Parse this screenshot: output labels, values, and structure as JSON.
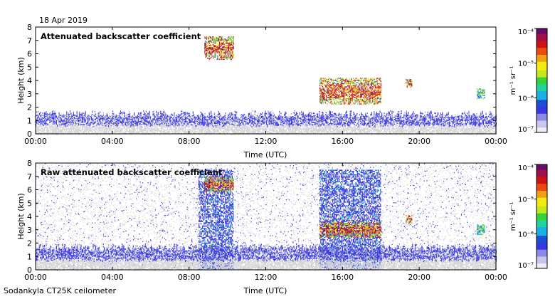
{
  "date_label": "18 Apr 2019",
  "instrument_label": "Sodankyla CT25K ceilometer",
  "colors": {
    "background_signal": "#d4d4d4",
    "low_signal": "#2b2bd9",
    "colormap": [
      "#ecebf8",
      "#c6c6ee",
      "#8a8ae6",
      "#3838e0",
      "#1d4fd6",
      "#1ab0e6",
      "#22d39b",
      "#37d23a",
      "#c5e81c",
      "#f2ea12",
      "#f29e12",
      "#ea4b10",
      "#cc1414",
      "#a0104a",
      "#6a0a6a"
    ]
  },
  "chart_data": [
    {
      "type": "heatmap",
      "title": "Attenuated backscatter coefficient",
      "xlabel": "Time (UTC)",
      "ylabel": "Height (km)",
      "x_ticks": [
        "00:00",
        "04:00",
        "08:00",
        "12:00",
        "16:00",
        "20:00",
        "00:00"
      ],
      "y_ticks": [
        "0",
        "1",
        "2",
        "3",
        "4",
        "5",
        "6",
        "7",
        "8"
      ],
      "xlim_hours": [
        0,
        24
      ],
      "ylim_km": [
        0,
        8
      ],
      "colorbar": {
        "label": "m⁻¹ sr⁻¹",
        "scale": "log",
        "ticks": [
          "10⁻⁴",
          "10⁻⁵",
          "10⁻⁶",
          "10⁻⁷"
        ],
        "range": [
          1e-07,
          0.0001
        ]
      },
      "features": [
        {
          "kind": "boundary_layer",
          "t_start": 0,
          "t_end": 24,
          "h_top_km": 1.6,
          "level": "low"
        },
        {
          "kind": "cloud",
          "t_start": 8.8,
          "t_end": 10.3,
          "h_bottom_km": 5.6,
          "h_top_km": 7.3,
          "level": "high"
        },
        {
          "kind": "cloud",
          "t_start": 14.8,
          "t_end": 18.0,
          "h_bottom_km": 2.2,
          "h_top_km": 4.2,
          "level": "high"
        },
        {
          "kind": "cloud",
          "t_start": 19.3,
          "t_end": 19.6,
          "h_bottom_km": 3.5,
          "h_top_km": 4.1,
          "level": "high"
        },
        {
          "kind": "cloud",
          "t_start": 23.0,
          "t_end": 23.4,
          "h_bottom_km": 2.6,
          "h_top_km": 3.4,
          "level": "mid"
        }
      ]
    },
    {
      "type": "heatmap",
      "title": "Raw attenuated backscatter coefficient",
      "xlabel": "Time (UTC)",
      "ylabel": "Height (km)",
      "x_ticks": [
        "00:00",
        "04:00",
        "08:00",
        "12:00",
        "16:00",
        "20:00",
        "00:00"
      ],
      "y_ticks": [
        "0",
        "1",
        "2",
        "3",
        "4",
        "5",
        "6",
        "7",
        "8"
      ],
      "xlim_hours": [
        0,
        24
      ],
      "ylim_km": [
        0,
        8
      ],
      "colorbar": {
        "label": "m⁻¹ sr⁻¹",
        "scale": "log",
        "ticks": [
          "10⁻⁴",
          "10⁻⁵",
          "10⁻⁶",
          "10⁻⁷"
        ],
        "range": [
          1e-07,
          0.0001
        ]
      },
      "features": [
        {
          "kind": "noise_field",
          "t_start": 0,
          "t_end": 24,
          "h_bottom_km": 0,
          "h_top_km": 8
        },
        {
          "kind": "precipitation",
          "t_start": 8.5,
          "t_end": 10.3,
          "h_bottom_km": 0,
          "h_top_km": 7.5,
          "level": "low"
        },
        {
          "kind": "precipitation",
          "t_start": 14.8,
          "t_end": 18.0,
          "h_bottom_km": 0,
          "h_top_km": 7.5,
          "level": "low"
        },
        {
          "kind": "cloud",
          "t_start": 8.8,
          "t_end": 10.3,
          "h_bottom_km": 5.8,
          "h_top_km": 7.0,
          "level": "high"
        },
        {
          "kind": "cloud",
          "t_start": 14.8,
          "t_end": 18.0,
          "h_bottom_km": 2.4,
          "h_top_km": 3.6,
          "level": "high"
        },
        {
          "kind": "cloud",
          "t_start": 19.3,
          "t_end": 19.6,
          "h_bottom_km": 3.5,
          "h_top_km": 4.1,
          "level": "high"
        },
        {
          "kind": "cloud",
          "t_start": 23.0,
          "t_end": 23.4,
          "h_bottom_km": 2.6,
          "h_top_km": 3.4,
          "level": "mid"
        },
        {
          "kind": "boundary_layer",
          "t_start": 0,
          "t_end": 24,
          "h_top_km": 1.8,
          "level": "low"
        }
      ]
    }
  ]
}
